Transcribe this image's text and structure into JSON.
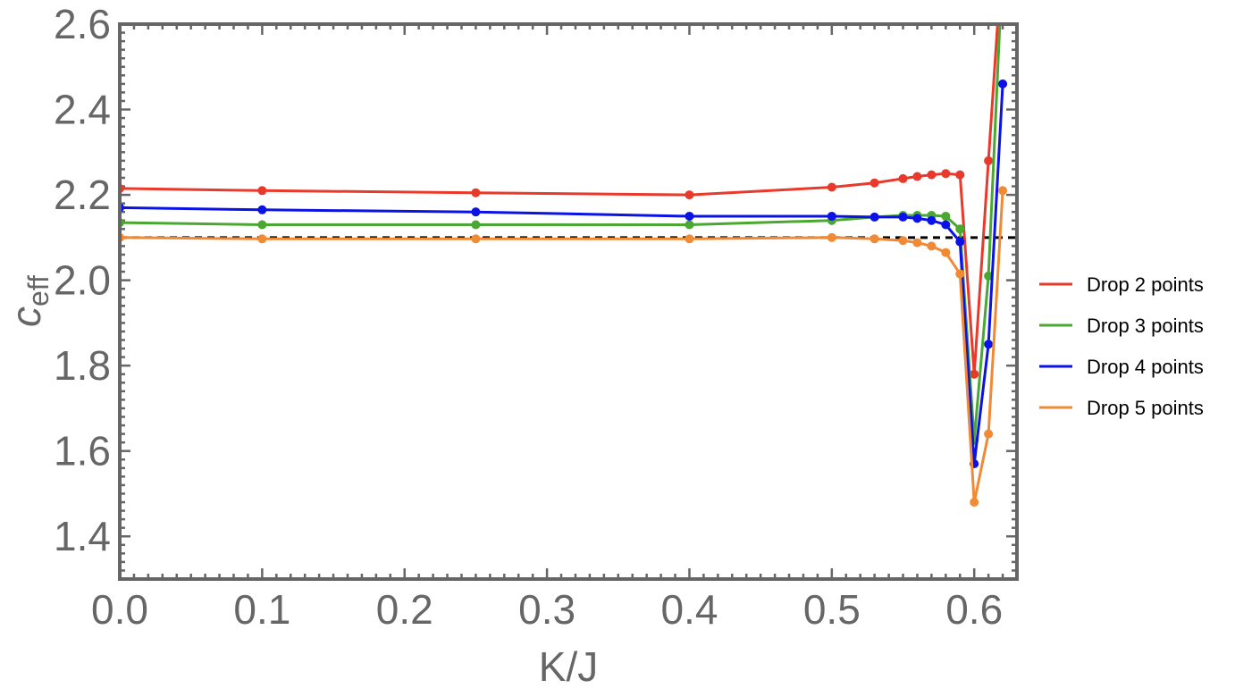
{
  "chart_data": {
    "type": "line",
    "xlabel": "K/J",
    "ylabel": {
      "main": "c",
      "sub": "eff"
    },
    "xlim": [
      0.0,
      0.63
    ],
    "ylim": [
      1.3,
      2.6
    ],
    "x_ticks": [
      "0.0",
      "0.1",
      "0.2",
      "0.3",
      "0.4",
      "0.5",
      "0.6"
    ],
    "y_ticks": [
      "1.4",
      "1.6",
      "1.8",
      "2.0",
      "2.2",
      "2.4",
      "2.6"
    ],
    "grid": false,
    "legend_position": "right",
    "reference_line": {
      "y": 2.1,
      "style": "dashed",
      "color": "#000000"
    },
    "series": [
      {
        "name": "Drop 2 points",
        "color": "#e8392a",
        "x": [
          0.0,
          0.1,
          0.25,
          0.4,
          0.5,
          0.53,
          0.55,
          0.56,
          0.57,
          0.58,
          0.59,
          0.6,
          0.61,
          0.62
        ],
        "y": [
          2.215,
          2.21,
          2.205,
          2.2,
          2.218,
          2.228,
          2.238,
          2.243,
          2.247,
          2.25,
          2.247,
          1.78,
          2.28,
          2.78
        ]
      },
      {
        "name": "Drop 3 points",
        "color": "#4aa832",
        "x": [
          0.0,
          0.1,
          0.25,
          0.4,
          0.5,
          0.53,
          0.55,
          0.56,
          0.57,
          0.58,
          0.59,
          0.6,
          0.61,
          0.62
        ],
        "y": [
          2.135,
          2.13,
          2.13,
          2.13,
          2.14,
          2.148,
          2.152,
          2.152,
          2.152,
          2.15,
          2.12,
          1.625,
          2.01,
          2.75
        ]
      },
      {
        "name": "Drop 4 points",
        "color": "#0a12e6",
        "x": [
          0.0,
          0.1,
          0.25,
          0.4,
          0.5,
          0.53,
          0.55,
          0.56,
          0.57,
          0.58,
          0.59,
          0.6,
          0.61,
          0.62
        ],
        "y": [
          2.17,
          2.165,
          2.16,
          2.15,
          2.15,
          2.148,
          2.148,
          2.145,
          2.14,
          2.13,
          2.09,
          1.57,
          1.85,
          2.46
        ]
      },
      {
        "name": "Drop 5 points",
        "color": "#f08a35",
        "x": [
          0.0,
          0.1,
          0.25,
          0.4,
          0.5,
          0.53,
          0.55,
          0.56,
          0.57,
          0.58,
          0.59,
          0.6,
          0.61,
          0.62
        ],
        "y": [
          2.1,
          2.097,
          2.097,
          2.097,
          2.1,
          2.097,
          2.093,
          2.088,
          2.08,
          2.065,
          2.015,
          1.48,
          1.64,
          2.21
        ]
      }
    ]
  }
}
